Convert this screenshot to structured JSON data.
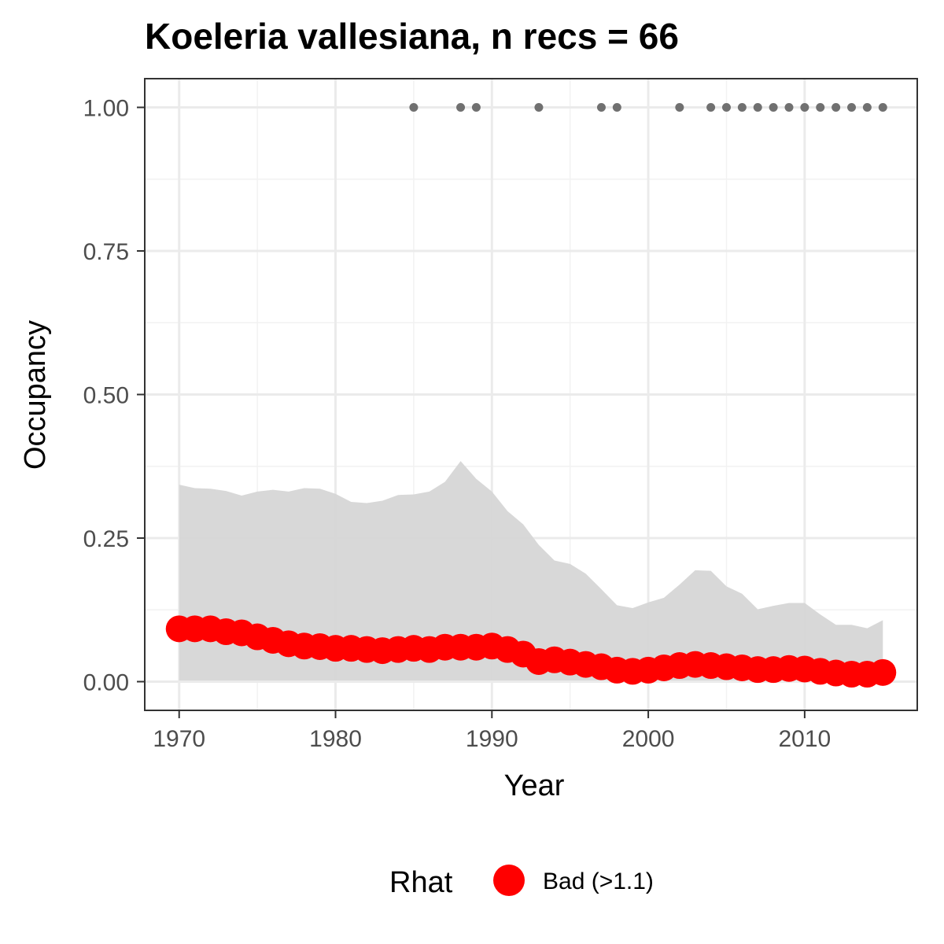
{
  "chart_data": {
    "type": "line",
    "title": "Koeleria vallesiana, n recs = 66",
    "xlabel": "Year",
    "ylabel": "Occupancy",
    "xlim": [
      1967.8,
      2017.2
    ],
    "ylim": [
      -0.05,
      1.05
    ],
    "x_ticks": [
      1970,
      1980,
      1990,
      2000,
      2010
    ],
    "x_tick_labels": [
      "1970",
      "1980",
      "1990",
      "2000",
      "2010"
    ],
    "y_ticks": [
      0,
      0.25,
      0.5,
      0.75,
      1
    ],
    "y_tick_labels": [
      "0.00",
      "0.25",
      "0.50",
      "0.75",
      "1.00"
    ],
    "grid": true,
    "legend": {
      "title": "Rhat",
      "position": "bottom",
      "entries": [
        {
          "label": "Bad (>1.1)",
          "color": "#ff0000"
        }
      ]
    },
    "x": [
      1970,
      1971,
      1972,
      1973,
      1974,
      1975,
      1976,
      1977,
      1978,
      1979,
      1980,
      1981,
      1982,
      1983,
      1984,
      1985,
      1986,
      1987,
      1988,
      1989,
      1990,
      1991,
      1992,
      1993,
      1994,
      1995,
      1996,
      1997,
      1998,
      1999,
      2000,
      2001,
      2002,
      2003,
      2004,
      2005,
      2006,
      2007,
      2008,
      2009,
      2010,
      2011,
      2012,
      2013,
      2014,
      2015
    ],
    "series": [
      {
        "values": [
          0.092,
          0.092,
          0.092,
          0.087,
          0.085,
          0.078,
          0.072,
          0.066,
          0.062,
          0.061,
          0.058,
          0.058,
          0.056,
          0.054,
          0.056,
          0.058,
          0.056,
          0.06,
          0.06,
          0.06,
          0.062,
          0.056,
          0.048,
          0.035,
          0.038,
          0.034,
          0.03,
          0.026,
          0.02,
          0.018,
          0.02,
          0.024,
          0.028,
          0.03,
          0.028,
          0.026,
          0.024,
          0.021,
          0.021,
          0.023,
          0.022,
          0.018,
          0.015,
          0.013,
          0.013,
          0.016
        ],
        "color": "#ff0000",
        "rhat": "Bad (>1.1)"
      }
    ],
    "ribbon": {
      "lower": [
        0.002,
        0.002,
        0.002,
        0.002,
        0.002,
        0.002,
        0.002,
        0.002,
        0.002,
        0.002,
        0.002,
        0.002,
        0.002,
        0.002,
        0.002,
        0.002,
        0.002,
        0.002,
        0.002,
        0.002,
        0.002,
        0.002,
        0.002,
        0.002,
        0.002,
        0.002,
        0.002,
        0.002,
        0.002,
        0.002,
        0.002,
        0.002,
        0.002,
        0.002,
        0.002,
        0.002,
        0.002,
        0.002,
        0.002,
        0.002,
        0.002,
        0.002,
        0.002,
        0.002,
        0.002,
        0.002
      ],
      "upper": [
        0.343,
        0.337,
        0.336,
        0.332,
        0.324,
        0.331,
        0.334,
        0.331,
        0.337,
        0.336,
        0.327,
        0.313,
        0.311,
        0.315,
        0.325,
        0.326,
        0.331,
        0.348,
        0.384,
        0.353,
        0.331,
        0.297,
        0.274,
        0.238,
        0.211,
        0.205,
        0.188,
        0.161,
        0.133,
        0.128,
        0.138,
        0.146,
        0.169,
        0.194,
        0.193,
        0.166,
        0.153,
        0.126,
        0.132,
        0.137,
        0.137,
        0.117,
        0.099,
        0.099,
        0.093,
        0.107
      ],
      "color": "#d6d6d6"
    },
    "detections": {
      "y": 1,
      "x": [
        1985,
        1988,
        1989,
        1993,
        1997,
        1998,
        2002,
        2004,
        2005,
        2006,
        2007,
        2008,
        2009,
        2010,
        2011,
        2012,
        2013,
        2014,
        2015
      ],
      "color": "#707070"
    }
  }
}
